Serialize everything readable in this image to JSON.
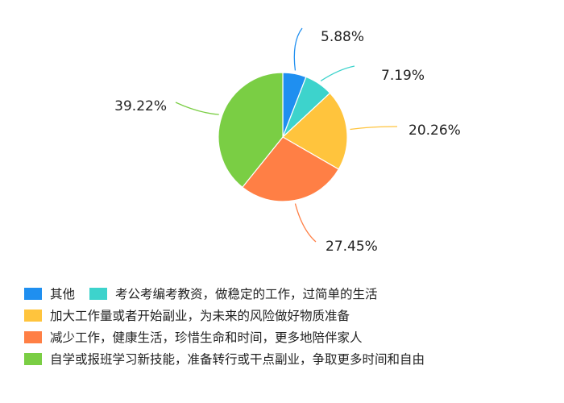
{
  "chart_data": {
    "type": "pie",
    "title": "",
    "series": [
      {
        "name": "其他",
        "value": 5.88,
        "label": "5.88%",
        "color": "#1f8ff0"
      },
      {
        "name": "考公考编考教资，做稳定的工作，过简单的生活",
        "value": 7.19,
        "label": "7.19%",
        "color": "#3dd3cc"
      },
      {
        "name": "加大工作量或者开始副业，为未来的风险做好物质准备",
        "value": 20.26,
        "label": "20.26%",
        "color": "#ffc43d"
      },
      {
        "name": "减少工作，健康生活，珍惜生命和时间，更多地陪伴家人",
        "value": 27.45,
        "label": "27.45%",
        "color": "#ff7f45"
      },
      {
        "name": "自学或报班学习新技能，准备转行或干点副业，争取更多时间和自由",
        "value": 39.22,
        "label": "39.22%",
        "color": "#7ace44"
      }
    ],
    "legend_position": "bottom-left",
    "start_angle": "12 o'clock, clockwise"
  }
}
